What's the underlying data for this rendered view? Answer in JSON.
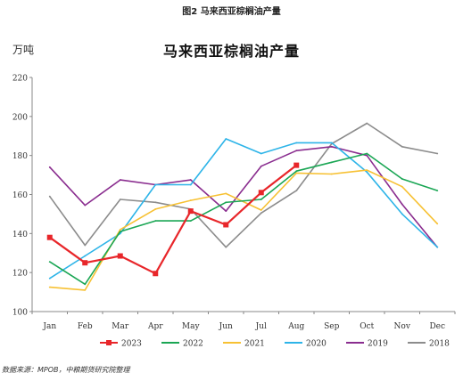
{
  "figure_label": "图2 马来西亚棕榈油产量",
  "unit_label": "万吨",
  "source_note": "数据来源：MPOB，中粮期货研究院整理",
  "chart_data": {
    "type": "line",
    "title": "马来西亚棕榈油产量",
    "xlabel": "",
    "ylabel": "万吨",
    "categories": [
      "Jan",
      "Feb",
      "Mar",
      "Apr",
      "May",
      "Jun",
      "Jul",
      "Aug",
      "Sep",
      "Oct",
      "Nov",
      "Dec"
    ],
    "ylim": [
      100,
      220
    ],
    "yticks": [
      100,
      120,
      140,
      160,
      180,
      200,
      220
    ],
    "grid": false,
    "legend_position": "bottom",
    "series": [
      {
        "name": "2023",
        "color": "#e8262a",
        "marker": "square",
        "values": [
          138,
          125,
          128.5,
          119.5,
          151.5,
          144.5,
          161,
          175,
          null,
          null,
          null,
          null
        ]
      },
      {
        "name": "2022",
        "color": "#1aa654",
        "marker": "none",
        "values": [
          125.5,
          114,
          141,
          146.5,
          146.5,
          156,
          157.5,
          172,
          176.5,
          181,
          168,
          162
        ]
      },
      {
        "name": "2021",
        "color": "#f7c133",
        "marker": "none",
        "values": [
          112.5,
          111,
          142,
          152.5,
          157,
          160.5,
          152,
          171,
          170.5,
          172.5,
          164,
          145
        ]
      },
      {
        "name": "2020",
        "color": "#2db4e8",
        "marker": "none",
        "values": [
          117,
          128.5,
          140,
          165,
          165,
          188.5,
          181,
          186.5,
          186.5,
          171.5,
          150,
          133
        ]
      },
      {
        "name": "2019",
        "color": "#8a2d8f",
        "marker": "none",
        "values": [
          174,
          154.5,
          167.5,
          165,
          167.5,
          151.5,
          174.5,
          182.5,
          184.5,
          180,
          155,
          133
        ]
      },
      {
        "name": "2018",
        "color": "#8c8c8c",
        "marker": "none",
        "values": [
          159,
          134,
          157.5,
          156,
          152.5,
          133,
          150.5,
          162,
          186,
          196.5,
          184.5,
          181
        ]
      }
    ]
  }
}
